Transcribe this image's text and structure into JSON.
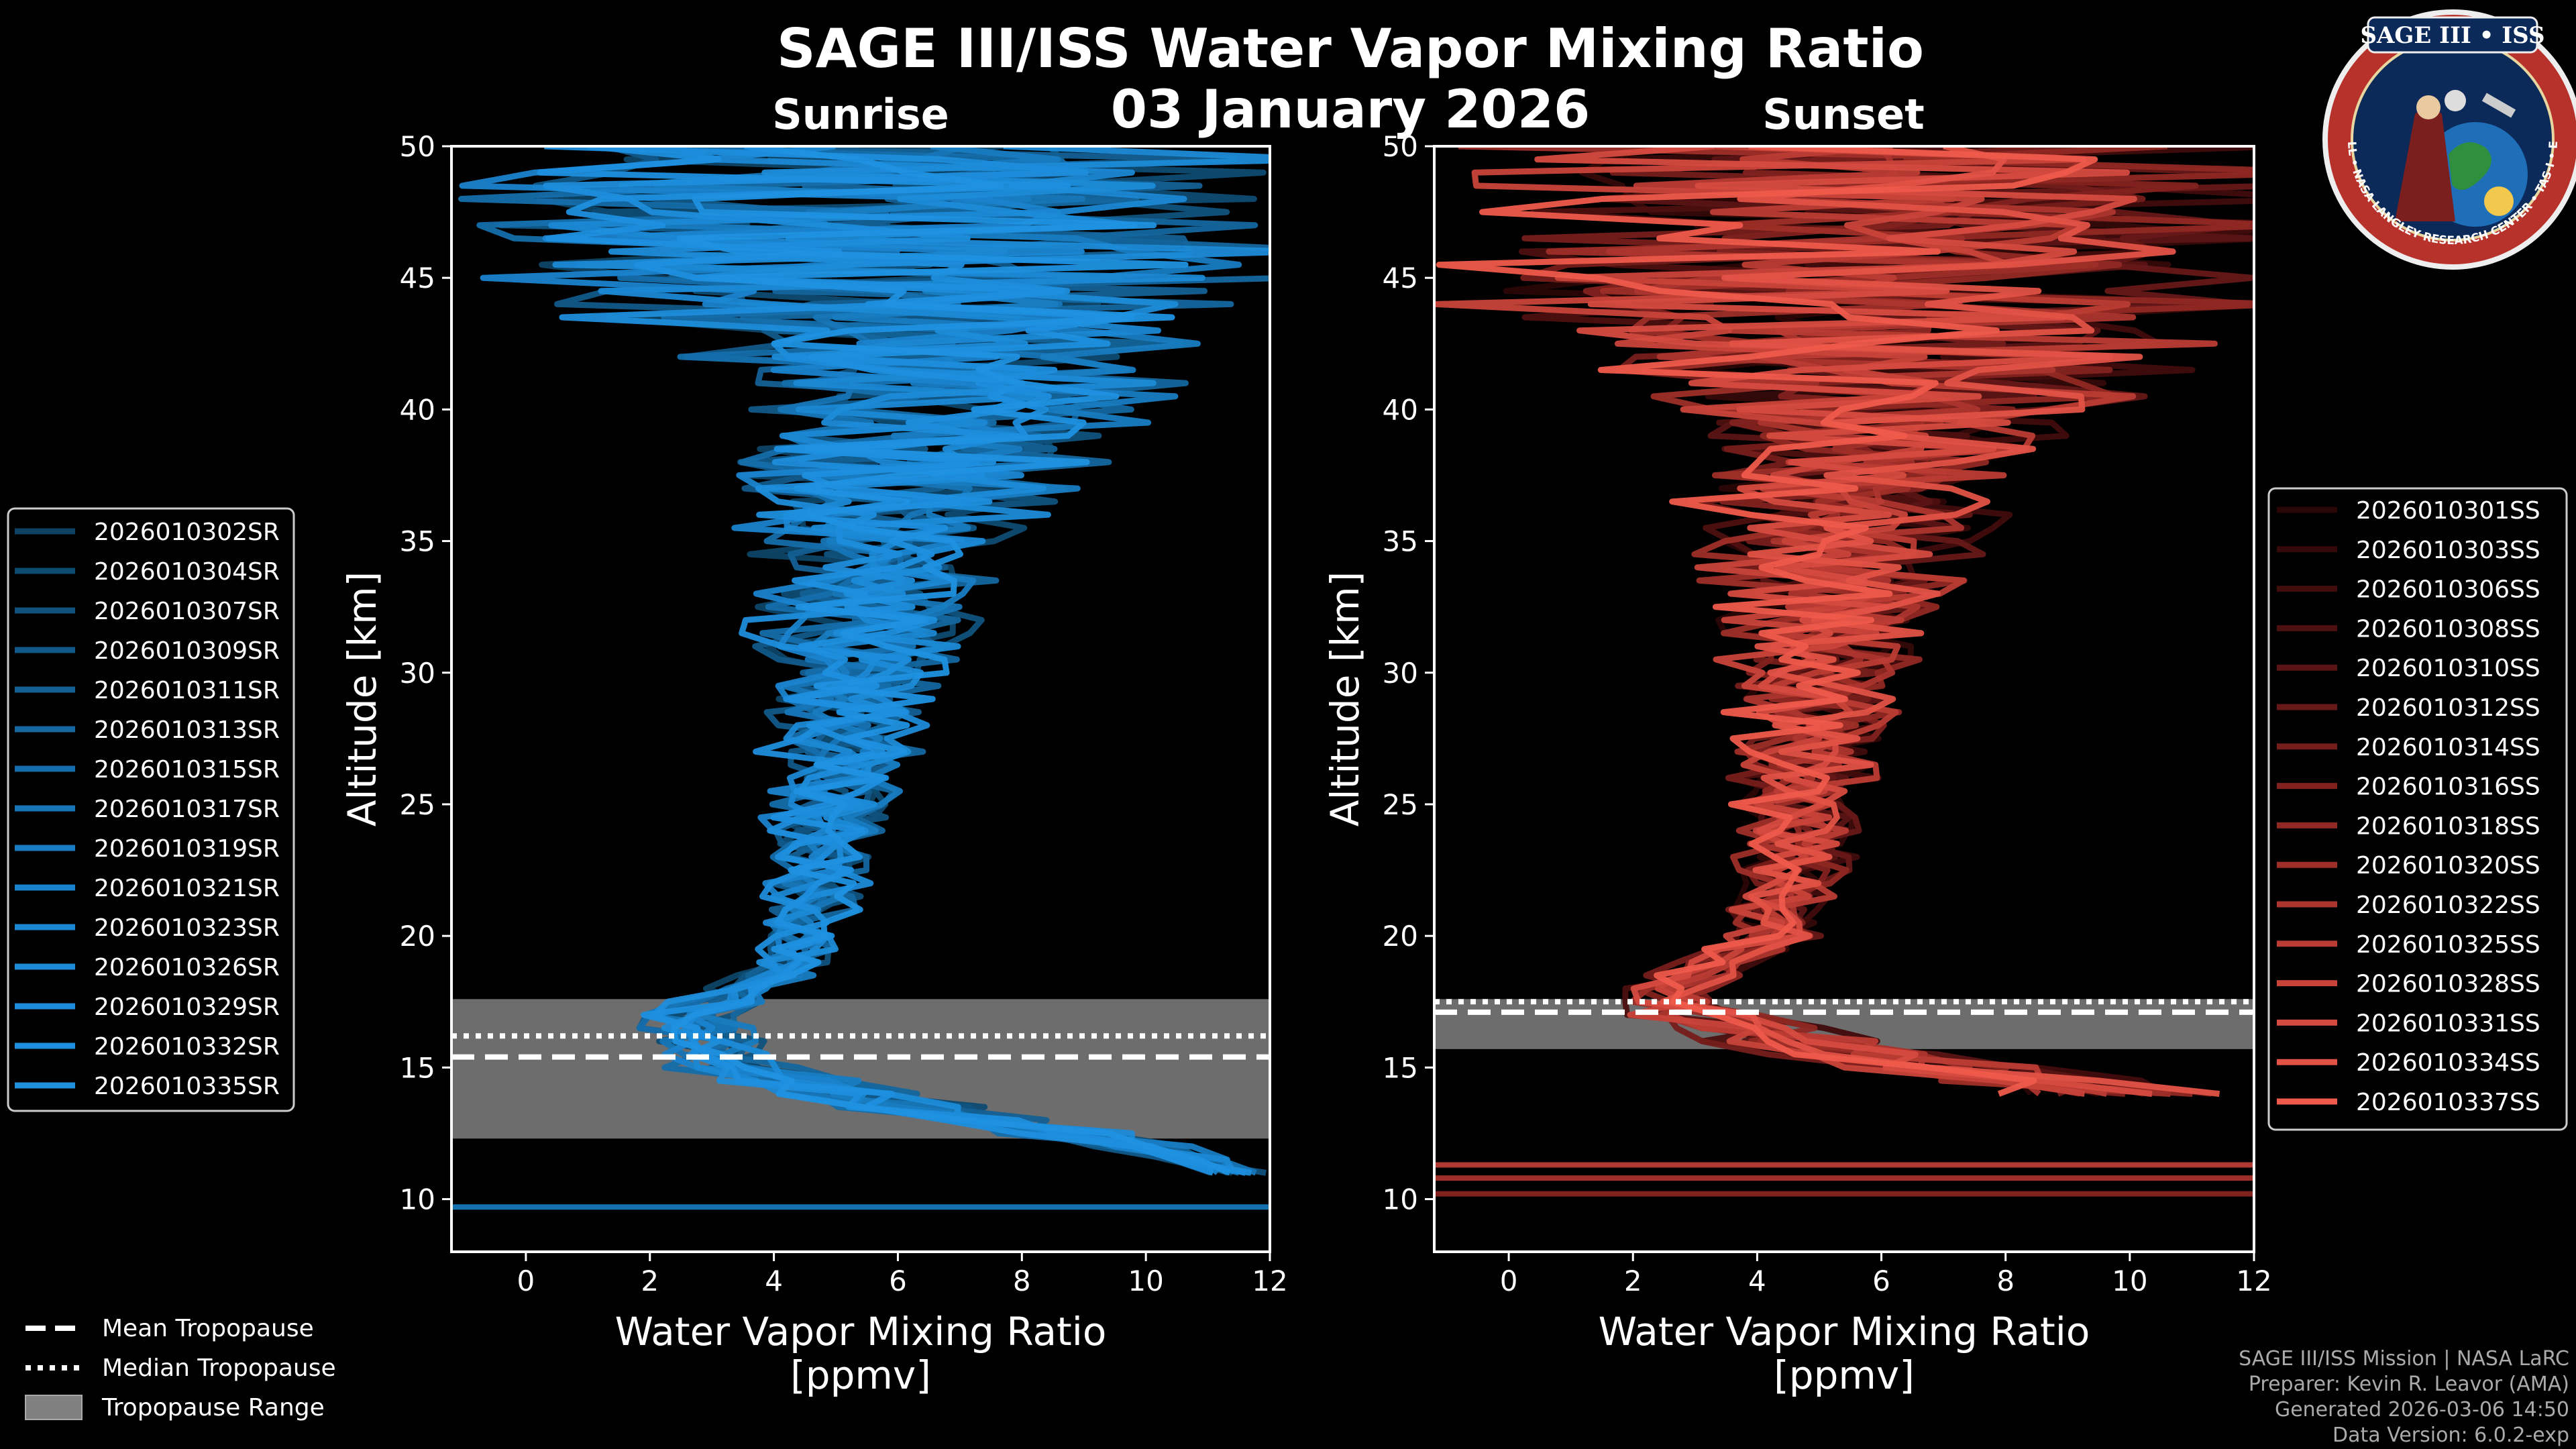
{
  "header": {
    "title": "SAGE III/ISS Water Vapor Mixing Ratio",
    "date": "03 January 2026",
    "logo_text": "SAGE III • ISS",
    "logo_ring_text": "BALL • NASA LANGLEY RESEARCH CENTER • TAS-I • ESA"
  },
  "credits": {
    "line1": "SAGE III/ISS Mission | NASA LaRC",
    "line2": "Preparer: Kevin R. Leavor (AMA)",
    "line3": "Generated 2026-03-06 14:50",
    "line4": "Data Version: 6.0.2-exp"
  },
  "colors": {
    "background": "#000000",
    "sunrise": "#1a8fd6",
    "sunset": "#ee5a4b",
    "tropopause_range": "#808080"
  },
  "chart_data": [
    {
      "type": "line",
      "id": "sunrise",
      "title": "Sunrise",
      "xlabel_line1": "Water Vapor Mixing Ratio",
      "xlabel_line2": "[ppmv]",
      "ylabel": "Altitude [km]",
      "xlim": [
        -1.2,
        12
      ],
      "ylim": [
        8,
        50
      ],
      "xticks": [
        0,
        2,
        4,
        6,
        8,
        10,
        12
      ],
      "yticks": [
        10,
        15,
        20,
        25,
        30,
        35,
        40,
        45,
        50
      ],
      "tropopause": {
        "mean": 15.4,
        "median": 16.2,
        "range": [
          12.3,
          17.6
        ]
      },
      "profile_mean": {
        "alt": [
          11,
          12,
          13,
          14,
          15,
          16,
          17,
          18,
          19,
          20,
          22,
          24,
          26,
          28,
          30,
          32,
          34,
          36,
          38,
          40,
          42,
          44,
          46,
          48,
          50
        ],
        "x": [
          11.5,
          10,
          7.5,
          5,
          3.5,
          2.8,
          2.6,
          3.5,
          4.2,
          4.5,
          4.7,
          4.8,
          5.0,
          5.2,
          5.3,
          5.5,
          5.7,
          6.0,
          6.3,
          6.6,
          6.5,
          6.2,
          6.0,
          6.0,
          6.0
        ]
      },
      "profile_spread": {
        "alt": [
          11,
          12,
          14,
          16,
          18,
          20,
          22,
          24,
          26,
          28,
          30,
          32,
          34,
          36,
          38,
          40,
          42,
          44,
          46,
          48,
          50
        ],
        "s": [
          0.5,
          1.0,
          1.5,
          1.0,
          0.8,
          0.8,
          0.9,
          1.0,
          1.2,
          1.4,
          1.6,
          1.9,
          2.2,
          2.6,
          3.0,
          3.6,
          4.5,
          6,
          7,
          7,
          7
        ]
      },
      "series": [
        {
          "name": "2026010302SR",
          "color": "#0d4466"
        },
        {
          "name": "2026010304SR",
          "color": "#0e4b72"
        },
        {
          "name": "2026010307SR",
          "color": "#10527d"
        },
        {
          "name": "2026010309SR",
          "color": "#115989"
        },
        {
          "name": "2026010311SR",
          "color": "#136094"
        },
        {
          "name": "2026010313SR",
          "color": "#14679f"
        },
        {
          "name": "2026010315SR",
          "color": "#156eab"
        },
        {
          "name": "2026010317SR",
          "color": "#1775b6"
        },
        {
          "name": "2026010319SR",
          "color": "#187cc1"
        },
        {
          "name": "2026010321SR",
          "color": "#1a83cd"
        },
        {
          "name": "2026010323SR",
          "color": "#1b88d4"
        },
        {
          "name": "2026010326SR",
          "color": "#1c8bd8"
        },
        {
          "name": "2026010329SR",
          "color": "#1d8ddb"
        },
        {
          "name": "2026010332SR",
          "color": "#1e8fde"
        },
        {
          "name": "2026010335SR",
          "color": "#1f91e0"
        }
      ],
      "extra_lines": [
        {
          "alt": 9.7,
          "color": "#1570b0"
        }
      ]
    },
    {
      "type": "line",
      "id": "sunset",
      "title": "Sunset",
      "xlabel_line1": "Water Vapor Mixing Ratio",
      "xlabel_line2": "[ppmv]",
      "ylabel": "Altitude [km]",
      "xlim": [
        -1.2,
        12
      ],
      "ylim": [
        8,
        50
      ],
      "xticks": [
        0,
        2,
        4,
        6,
        8,
        10,
        12
      ],
      "yticks": [
        10,
        15,
        20,
        25,
        30,
        35,
        40,
        45,
        50
      ],
      "tropopause": {
        "mean": 17.1,
        "median": 17.5,
        "range": [
          15.7,
          17.6
        ]
      },
      "profile_mean": {
        "alt": [
          14,
          15,
          16,
          17,
          18,
          19,
          20,
          22,
          24,
          26,
          28,
          30,
          32,
          34,
          36,
          38,
          40,
          42,
          44,
          46,
          48,
          50
        ],
        "x": [
          10,
          7,
          4.5,
          3,
          2.6,
          3.4,
          4.2,
          4.5,
          4.6,
          4.7,
          4.9,
          5.0,
          5.1,
          5.2,
          5.4,
          5.6,
          5.8,
          6.0,
          6.0,
          6.0,
          6.0,
          6.0
        ]
      },
      "profile_spread": {
        "alt": [
          14,
          16,
          18,
          20,
          22,
          24,
          26,
          28,
          30,
          32,
          34,
          36,
          38,
          40,
          42,
          44,
          46,
          48,
          50
        ],
        "s": [
          2,
          1.5,
          0.8,
          0.8,
          0.9,
          1.0,
          1.2,
          1.4,
          1.6,
          1.9,
          2.2,
          2.6,
          3.0,
          3.8,
          5,
          7,
          7,
          7,
          7
        ]
      },
      "series": [
        {
          "name": "2026010301SS",
          "color": "#2a0606"
        },
        {
          "name": "2026010303SS",
          "color": "#350909"
        },
        {
          "name": "2026010306SS",
          "color": "#400c0c"
        },
        {
          "name": "2026010308SS",
          "color": "#4d1010"
        },
        {
          "name": "2026010310SS",
          "color": "#5a1414"
        },
        {
          "name": "2026010312SS",
          "color": "#671818"
        },
        {
          "name": "2026010314SS",
          "color": "#751d1b"
        },
        {
          "name": "2026010316SS",
          "color": "#82221f"
        },
        {
          "name": "2026010318SS",
          "color": "#902823"
        },
        {
          "name": "2026010320SS",
          "color": "#9e2e28"
        },
        {
          "name": "2026010322SS",
          "color": "#ac352e"
        },
        {
          "name": "2026010325SS",
          "color": "#ba3c34"
        },
        {
          "name": "2026010328SS",
          "color": "#c8433a"
        },
        {
          "name": "2026010331SS",
          "color": "#d64b40"
        },
        {
          "name": "2026010334SS",
          "color": "#e25246"
        },
        {
          "name": "2026010337SS",
          "color": "#ee5a4b"
        }
      ],
      "extra_lines": [
        {
          "alt": 11.3,
          "color": "#b03a32"
        },
        {
          "alt": 10.8,
          "color": "#9e2e28"
        },
        {
          "alt": 10.2,
          "color": "#82221f"
        }
      ]
    }
  ],
  "bottom_legend": [
    {
      "label": "Mean Tropopause",
      "style": "dashed"
    },
    {
      "label": "Median Tropopause",
      "style": "dotted"
    },
    {
      "label": "Tropopause Range",
      "style": "patch"
    }
  ]
}
